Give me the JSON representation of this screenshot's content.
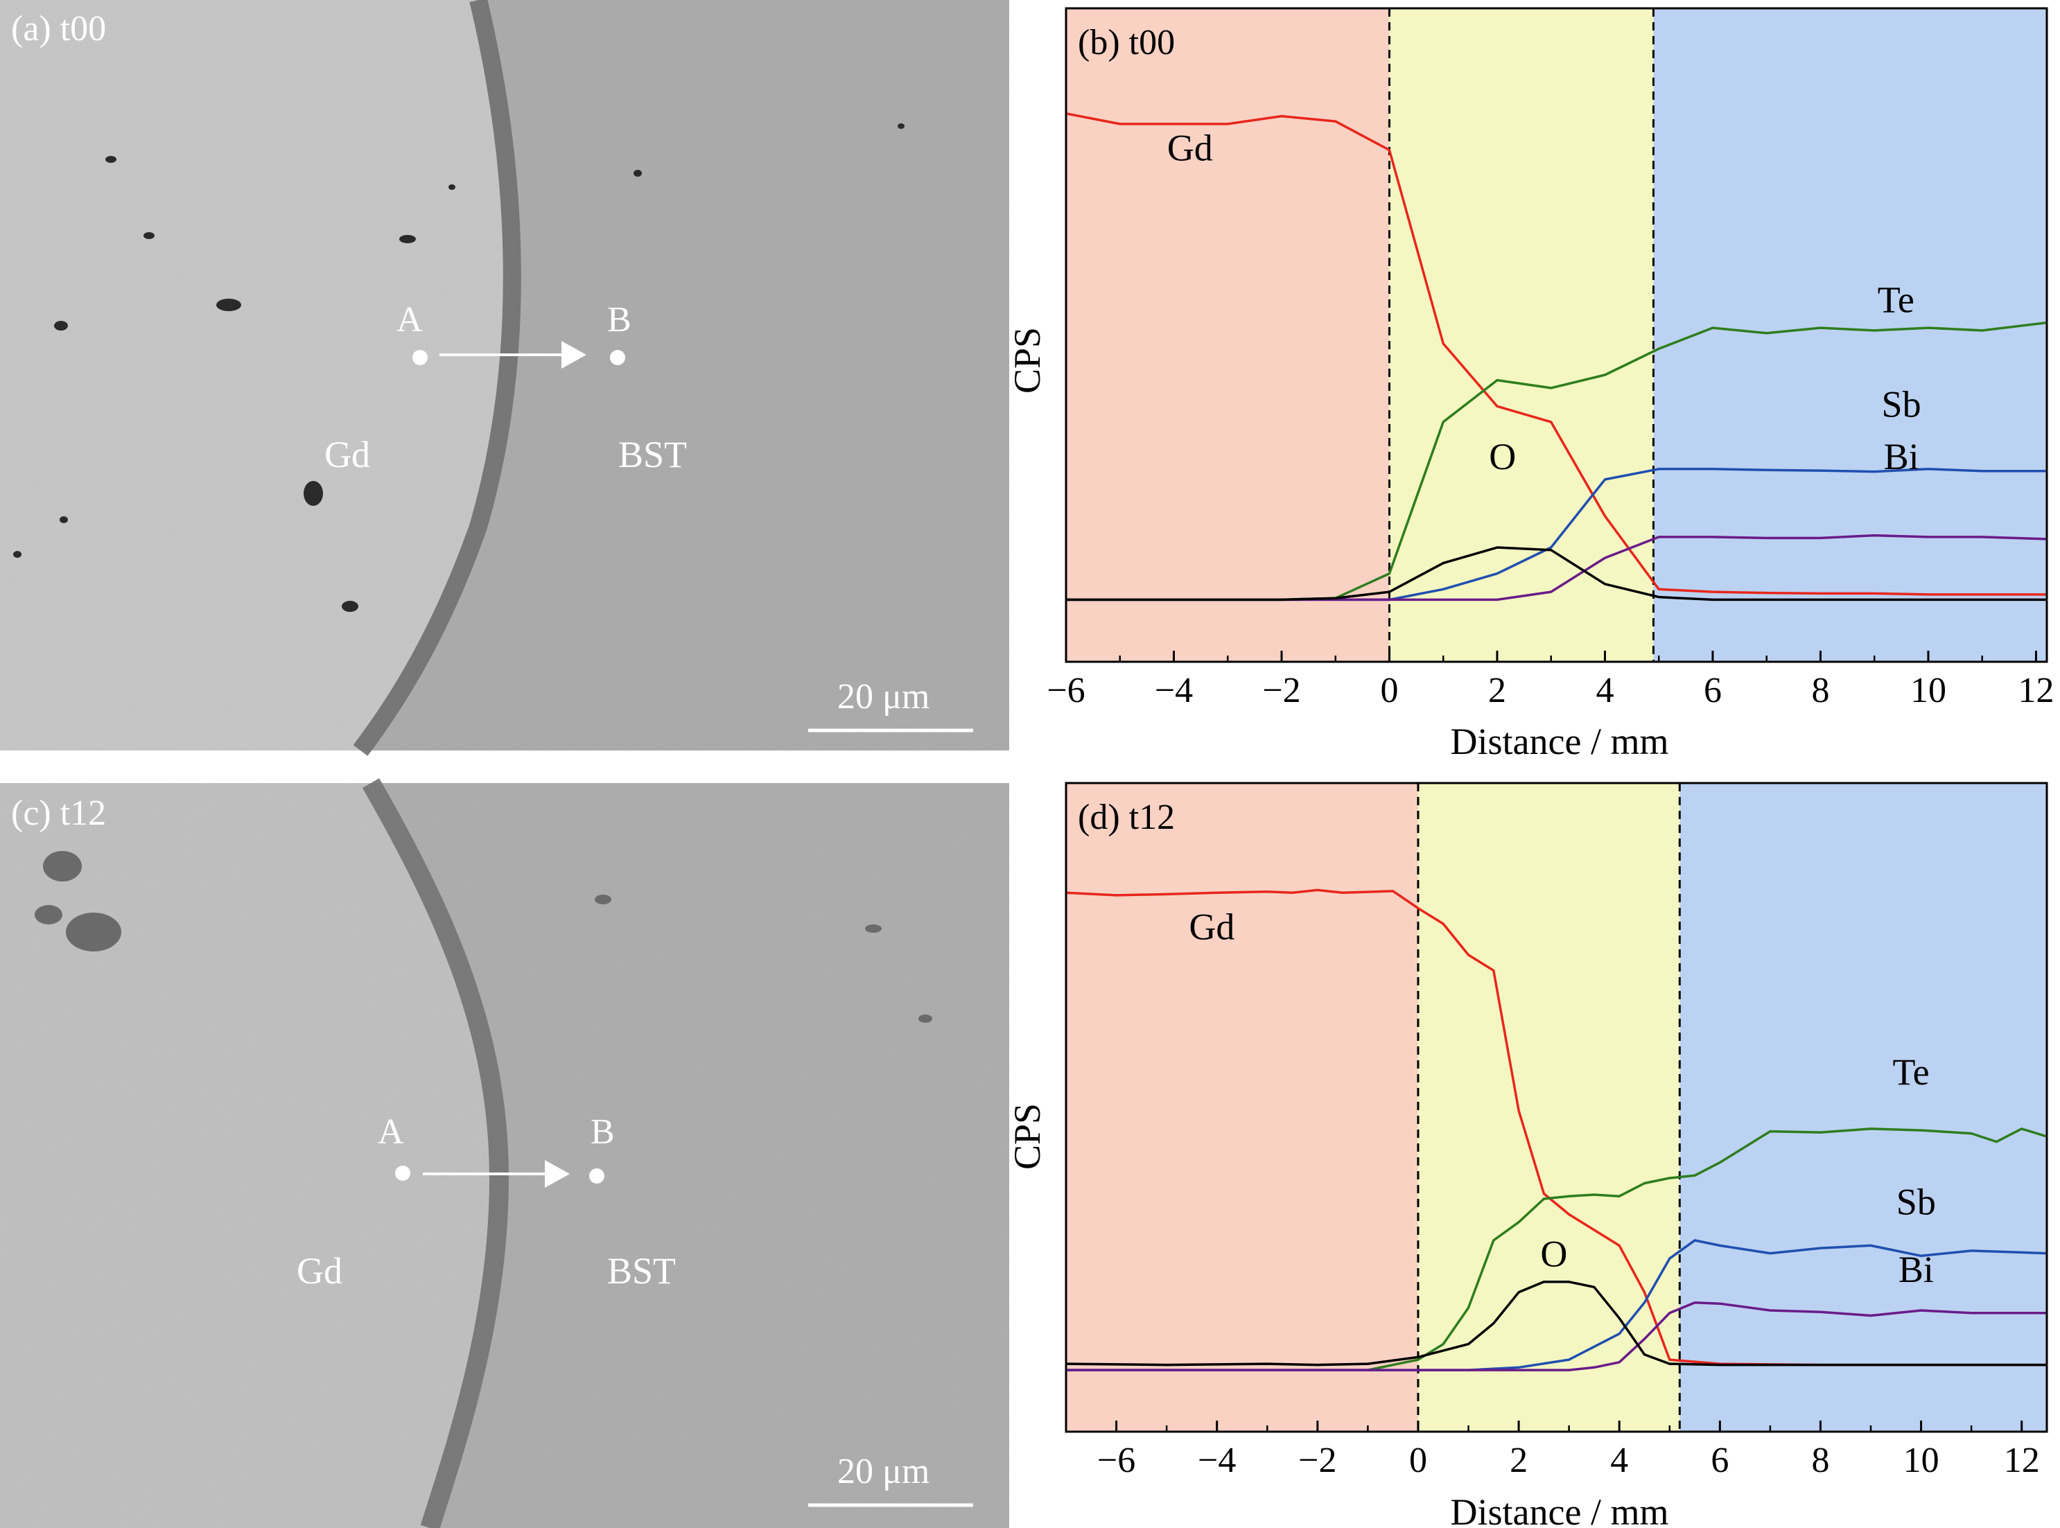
{
  "panels": {
    "a": {
      "label": "(a) t00",
      "point_a": "A",
      "point_b": "B",
      "region_left": "Gd",
      "region_right": "BST",
      "scale_bar": "20 μm"
    },
    "c": {
      "label": "(c) t12",
      "point_a": "A",
      "point_b": "B",
      "region_left": "Gd",
      "region_right": "BST",
      "scale_bar": "20 μm"
    }
  },
  "colors": {
    "Gd": "#e8261b",
    "Te": "#2e7d1e",
    "Sb": "#1f4fb0",
    "Bi": "#6a1b8a",
    "O": "#000000",
    "zone_gd": "#f9d2c4",
    "zone_mid": "#f4f7c2",
    "zone_bst": "#bcd2f2"
  },
  "chart_data": [
    {
      "panel": "b",
      "type": "line",
      "label": "(b) t00",
      "xlabel": "Distance / mm",
      "ylabel": "CPS",
      "xlim": [
        -6,
        12.2
      ],
      "ylim": [
        0,
        100
      ],
      "xticks": [
        -6,
        -4,
        -2,
        0,
        2,
        4,
        6,
        8,
        10,
        12
      ],
      "zones": [
        -6,
        0,
        4.9,
        12.2
      ],
      "annotations": [
        {
          "text": "Gd",
          "x": -3.7,
          "y": 84
        },
        {
          "text": "Te",
          "x": 9.4,
          "y": 55
        },
        {
          "text": "Sb",
          "x": 9.5,
          "y": 35
        },
        {
          "text": "Bi",
          "x": 9.5,
          "y": 25
        },
        {
          "text": "O",
          "x": 2.1,
          "y": 25
        }
      ],
      "series": [
        {
          "name": "Gd",
          "x": [
            -6,
            -5,
            -4,
            -3,
            -2,
            -1,
            0,
            1,
            2,
            3,
            4,
            5,
            6,
            7,
            8,
            9,
            10,
            11,
            12.2
          ],
          "y": [
            93,
            91,
            91,
            91,
            92.5,
            91.5,
            86,
            49,
            37,
            34,
            16,
            2,
            1.5,
            1.3,
            1.2,
            1.2,
            1,
            1,
            1
          ]
        },
        {
          "name": "Te",
          "x": [
            -6,
            -4,
            -2,
            -1,
            0,
            1,
            2,
            3,
            4,
            5,
            6,
            7,
            8,
            9,
            10,
            11,
            12.2
          ],
          "y": [
            0,
            0,
            0,
            0.3,
            5,
            34,
            42,
            40.5,
            43,
            48,
            52,
            51,
            52,
            51.5,
            52,
            51.5,
            53
          ]
        },
        {
          "name": "Sb",
          "x": [
            -6,
            -4,
            -2,
            0,
            1,
            2,
            3,
            4,
            5,
            6,
            7,
            8,
            9,
            10,
            11,
            12.2
          ],
          "y": [
            0,
            0,
            0,
            0,
            2,
            5,
            10,
            23,
            25,
            25,
            24.8,
            24.7,
            24.5,
            25,
            24.6,
            24.6
          ]
        },
        {
          "name": "Bi",
          "x": [
            -6,
            -4,
            -2,
            0,
            1,
            2,
            3,
            4,
            5,
            6,
            7,
            8,
            9,
            10,
            11,
            12.2
          ],
          "y": [
            0,
            0,
            0,
            0,
            0,
            0,
            1.5,
            8,
            12,
            12,
            11.8,
            11.8,
            12.3,
            12,
            12,
            11.6
          ]
        },
        {
          "name": "O",
          "x": [
            -6,
            -4,
            -2,
            -1,
            0,
            1,
            2,
            3,
            4,
            5,
            6,
            8,
            10,
            12.2
          ],
          "y": [
            0,
            0,
            0,
            0.3,
            1.5,
            7,
            10,
            9.5,
            3,
            0.5,
            0,
            0,
            0,
            0
          ]
        }
      ]
    },
    {
      "panel": "d",
      "type": "line",
      "label": "(d) t12",
      "xlabel": "Distance / mm",
      "ylabel": "CPS",
      "xlim": [
        -7,
        12.5
      ],
      "ylim": [
        0,
        100
      ],
      "xticks": [
        -6,
        -4,
        -2,
        0,
        2,
        4,
        6,
        8,
        10,
        12
      ],
      "zones": [
        -7,
        0,
        5.2,
        12.5
      ],
      "annotations": [
        {
          "text": "Gd",
          "x": -4.1,
          "y": 83
        },
        {
          "text": "Te",
          "x": 9.8,
          "y": 55
        },
        {
          "text": "Sb",
          "x": 9.9,
          "y": 30
        },
        {
          "text": "Bi",
          "x": 9.9,
          "y": 17
        },
        {
          "text": "O",
          "x": 2.7,
          "y": 20
        }
      ],
      "series": [
        {
          "name": "Gd",
          "x": [
            -7,
            -6,
            -5,
            -4,
            -3,
            -2.5,
            -2,
            -1.5,
            -0.5,
            0,
            0.5,
            1,
            1.5,
            2,
            2.5,
            3,
            3.5,
            4,
            4.5,
            5,
            6,
            8,
            10,
            12.5
          ],
          "y": [
            92,
            91.5,
            91.7,
            92,
            92.2,
            92,
            92.5,
            92,
            92.3,
            89,
            86,
            80,
            77,
            50,
            34,
            30,
            27,
            24,
            15,
            2,
            1.2,
            1,
            1,
            1
          ]
        },
        {
          "name": "Te",
          "x": [
            -7,
            -4,
            -2,
            -1,
            0,
            0.5,
            1,
            1.5,
            2,
            2.5,
            3,
            3.5,
            4,
            4.5,
            5,
            5.5,
            6,
            7,
            8,
            9,
            10,
            11,
            11.5,
            12,
            12.5
          ],
          "y": [
            0,
            0,
            0,
            0,
            2,
            5,
            12,
            25,
            28.5,
            33,
            33.5,
            33.8,
            33.5,
            36,
            37,
            37.5,
            40,
            46,
            45.8,
            46.5,
            46.2,
            45.6,
            44,
            46.5,
            45
          ]
        },
        {
          "name": "Sb",
          "x": [
            -7,
            -4,
            -2,
            0,
            1,
            2,
            3,
            4,
            4.5,
            5,
            5.5,
            6,
            7,
            8,
            9,
            10,
            11,
            12.5
          ],
          "y": [
            0,
            0,
            0,
            0,
            0,
            0.5,
            2,
            7,
            13,
            21.5,
            25,
            24,
            22.5,
            23.5,
            24,
            22,
            23,
            22.5
          ]
        },
        {
          "name": "Bi",
          "x": [
            -7,
            -4,
            -2,
            0,
            1,
            2,
            3,
            3.5,
            4,
            4.5,
            5,
            5.5,
            6,
            7,
            8,
            9,
            10,
            11,
            12.5
          ],
          "y": [
            0,
            0,
            0,
            0,
            0,
            0,
            0,
            0.5,
            1.5,
            6,
            11,
            13,
            12.8,
            11.5,
            11.2,
            10.5,
            11.5,
            11,
            11
          ]
        },
        {
          "name": "O",
          "x": [
            -7,
            -5,
            -3,
            -2,
            -1,
            0,
            1,
            1.5,
            2,
            2.5,
            3,
            3.5,
            4,
            4.5,
            5,
            6,
            8,
            12.5
          ],
          "y": [
            1.2,
            1,
            1.2,
            1,
            1.2,
            2.5,
            5,
            9,
            15,
            17,
            17,
            16,
            10,
            3,
            1.2,
            1,
            1,
            1
          ]
        }
      ]
    }
  ]
}
